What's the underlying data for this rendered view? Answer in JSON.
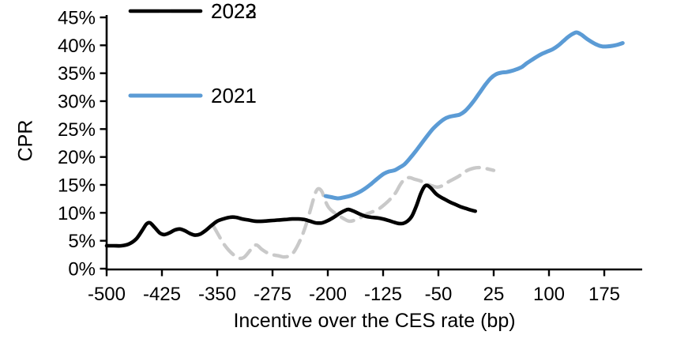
{
  "chart_data": {
    "type": "line",
    "title": "",
    "xlabel": "Incentive over the CES rate (bp)",
    "ylabel": "CPR",
    "xlim": [
      -500,
      226
    ],
    "ylim": [
      0,
      45
    ],
    "grid": false,
    "legend_position": "top-left",
    "x_ticks": {
      "values": [
        -500,
        -425,
        -350,
        -275,
        -200,
        -125,
        -50,
        25,
        100,
        175
      ],
      "labels": [
        "-500",
        "-425",
        "-350",
        "-275",
        "-200",
        "-125",
        "-50",
        "25",
        "100",
        "175"
      ]
    },
    "y_ticks": {
      "values": [
        0,
        5,
        10,
        15,
        20,
        25,
        30,
        35,
        40,
        45
      ],
      "labels": [
        "0%",
        "5%",
        "10%",
        "15%",
        "20%",
        "25%",
        "30%",
        "35%",
        "40%",
        "45%"
      ]
    },
    "series": [
      {
        "name": "2021",
        "color": "#5B9BD5",
        "line_style": "solid",
        "points": [
          [
            -203,
            13.0
          ],
          [
            -195,
            12.8
          ],
          [
            -186,
            12.6
          ],
          [
            -177,
            12.8
          ],
          [
            -168,
            13.1
          ],
          [
            -159,
            13.6
          ],
          [
            -150,
            14.3
          ],
          [
            -141,
            15.2
          ],
          [
            -132,
            16.2
          ],
          [
            -124,
            17.0
          ],
          [
            -117,
            17.4
          ],
          [
            -110,
            17.6
          ],
          [
            -103,
            18.1
          ],
          [
            -96,
            18.7
          ],
          [
            -89,
            19.7
          ],
          [
            -81,
            21.0
          ],
          [
            -73,
            22.4
          ],
          [
            -65,
            23.8
          ],
          [
            -57,
            25.1
          ],
          [
            -49,
            26.1
          ],
          [
            -42,
            26.8
          ],
          [
            -35,
            27.2
          ],
          [
            -28,
            27.4
          ],
          [
            -21,
            27.6
          ],
          [
            -14,
            28.2
          ],
          [
            -7,
            29.2
          ],
          [
            0,
            30.4
          ],
          [
            7,
            31.7
          ],
          [
            14,
            33.0
          ],
          [
            21,
            34.1
          ],
          [
            28,
            34.8
          ],
          [
            35,
            35.1
          ],
          [
            42,
            35.2
          ],
          [
            49,
            35.4
          ],
          [
            56,
            35.7
          ],
          [
            63,
            36.1
          ],
          [
            70,
            36.8
          ],
          [
            77,
            37.4
          ],
          [
            84,
            38.0
          ],
          [
            91,
            38.5
          ],
          [
            98,
            38.9
          ],
          [
            105,
            39.3
          ],
          [
            112,
            39.9
          ],
          [
            119,
            40.7
          ],
          [
            126,
            41.5
          ],
          [
            133,
            42.1
          ],
          [
            138,
            42.3
          ],
          [
            144,
            41.9
          ],
          [
            151,
            41.2
          ],
          [
            158,
            40.6
          ],
          [
            165,
            40.1
          ],
          [
            172,
            39.8
          ],
          [
            179,
            39.8
          ],
          [
            186,
            39.9
          ],
          [
            193,
            40.1
          ],
          [
            200,
            40.4
          ]
        ]
      },
      {
        "name": "2022",
        "color": "#C9C9C9",
        "line_style": "dashed",
        "points": [
          [
            -355,
            7.6
          ],
          [
            -349,
            6.2
          ],
          [
            -342,
            4.6
          ],
          [
            -335,
            3.4
          ],
          [
            -328,
            2.5
          ],
          [
            -321,
            1.9
          ],
          [
            -314,
            2.0
          ],
          [
            -307,
            3.0
          ],
          [
            -301,
            4.0
          ],
          [
            -296,
            4.2
          ],
          [
            -290,
            3.5
          ],
          [
            -283,
            2.9
          ],
          [
            -275,
            2.5
          ],
          [
            -267,
            2.3
          ],
          [
            -259,
            2.1
          ],
          [
            -252,
            2.3
          ],
          [
            -246,
            3.0
          ],
          [
            -240,
            4.4
          ],
          [
            -234,
            6.2
          ],
          [
            -228,
            8.5
          ],
          [
            -222,
            11.3
          ],
          [
            -217,
            13.5
          ],
          [
            -213,
            14.3
          ],
          [
            -208,
            13.8
          ],
          [
            -204,
            12.3
          ],
          [
            -199,
            11.0
          ],
          [
            -193,
            10.2
          ],
          [
            -186,
            9.6
          ],
          [
            -179,
            9.0
          ],
          [
            -171,
            8.5
          ],
          [
            -163,
            8.7
          ],
          [
            -155,
            9.2
          ],
          [
            -147,
            9.8
          ],
          [
            -139,
            10.2
          ],
          [
            -131,
            10.7
          ],
          [
            -123,
            11.5
          ],
          [
            -115,
            12.5
          ],
          [
            -108,
            13.6
          ],
          [
            -101,
            15.2
          ],
          [
            -95,
            16.1
          ],
          [
            -89,
            16.3
          ],
          [
            -82,
            16.0
          ],
          [
            -74,
            15.7
          ],
          [
            -66,
            15.2
          ],
          [
            -58,
            14.8
          ],
          [
            -51,
            14.6
          ],
          [
            -44,
            14.9
          ],
          [
            -37,
            15.5
          ],
          [
            -30,
            16.0
          ],
          [
            -23,
            16.5
          ],
          [
            -16,
            17.2
          ],
          [
            -9,
            17.7
          ],
          [
            -2,
            18.0
          ],
          [
            5,
            18.1
          ],
          [
            12,
            18.0
          ],
          [
            19,
            17.8
          ],
          [
            25,
            17.6
          ]
        ]
      },
      {
        "name": "2023",
        "color": "#000000",
        "line_style": "solid",
        "points": [
          [
            -500,
            4.1
          ],
          [
            -490,
            4.1
          ],
          [
            -480,
            4.1
          ],
          [
            -470,
            4.4
          ],
          [
            -460,
            5.3
          ],
          [
            -452,
            6.8
          ],
          [
            -446,
            8.0
          ],
          [
            -441,
            8.2
          ],
          [
            -435,
            7.4
          ],
          [
            -428,
            6.4
          ],
          [
            -422,
            6.1
          ],
          [
            -415,
            6.4
          ],
          [
            -408,
            6.9
          ],
          [
            -401,
            7.1
          ],
          [
            -394,
            6.8
          ],
          [
            -387,
            6.3
          ],
          [
            -380,
            6.0
          ],
          [
            -373,
            6.2
          ],
          [
            -366,
            6.8
          ],
          [
            -358,
            7.7
          ],
          [
            -350,
            8.5
          ],
          [
            -342,
            8.9
          ],
          [
            -333,
            9.2
          ],
          [
            -325,
            9.2
          ],
          [
            -316,
            8.9
          ],
          [
            -307,
            8.7
          ],
          [
            -298,
            8.5
          ],
          [
            -288,
            8.5
          ],
          [
            -278,
            8.6
          ],
          [
            -268,
            8.7
          ],
          [
            -258,
            8.8
          ],
          [
            -248,
            8.9
          ],
          [
            -240,
            8.9
          ],
          [
            -232,
            8.8
          ],
          [
            -224,
            8.5
          ],
          [
            -216,
            8.2
          ],
          [
            -208,
            8.2
          ],
          [
            -200,
            8.6
          ],
          [
            -192,
            9.2
          ],
          [
            -184,
            9.9
          ],
          [
            -177,
            10.4
          ],
          [
            -172,
            10.6
          ],
          [
            -165,
            10.3
          ],
          [
            -157,
            9.8
          ],
          [
            -149,
            9.4
          ],
          [
            -141,
            9.2
          ],
          [
            -133,
            9.1
          ],
          [
            -125,
            8.9
          ],
          [
            -117,
            8.6
          ],
          [
            -110,
            8.3
          ],
          [
            -104,
            8.1
          ],
          [
            -98,
            8.1
          ],
          [
            -92,
            8.5
          ],
          [
            -86,
            9.4
          ],
          [
            -80,
            11.2
          ],
          [
            -74,
            13.4
          ],
          [
            -69,
            14.7
          ],
          [
            -65,
            14.9
          ],
          [
            -60,
            14.4
          ],
          [
            -54,
            13.5
          ],
          [
            -48,
            12.9
          ],
          [
            -41,
            12.4
          ],
          [
            -34,
            11.9
          ],
          [
            -27,
            11.5
          ],
          [
            -20,
            11.1
          ],
          [
            -13,
            10.8
          ],
          [
            -6,
            10.5
          ],
          [
            0,
            10.3
          ]
        ]
      }
    ]
  },
  "legend": [
    {
      "label": "2021"
    },
    {
      "label": "2022"
    },
    {
      "label": "2023"
    }
  ]
}
